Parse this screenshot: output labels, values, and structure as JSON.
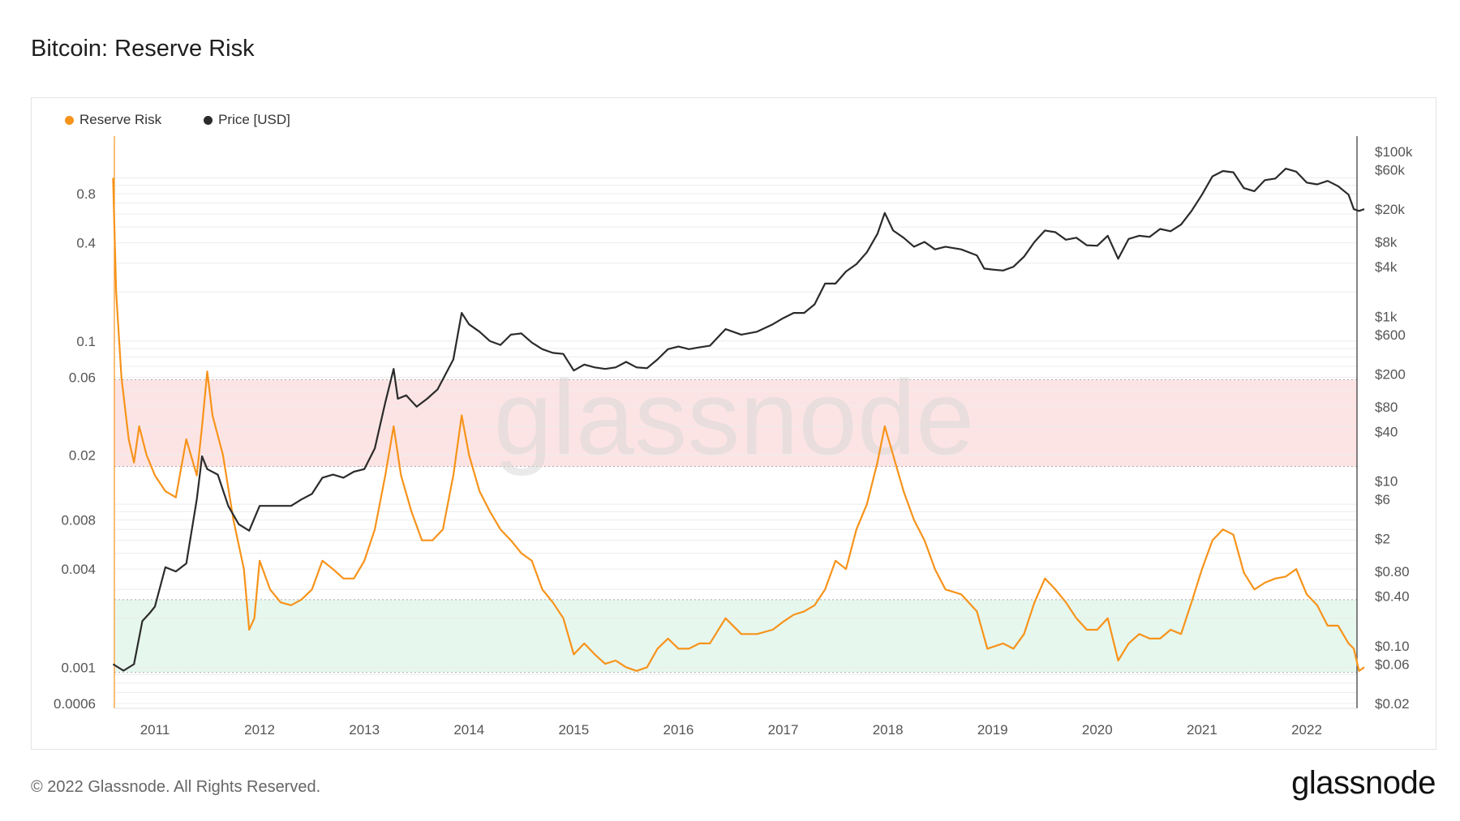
{
  "title": "Bitcoin: Reserve Risk",
  "footer": "© 2022 Glassnode. All Rights Reserved.",
  "logo": "glassnode",
  "watermark": "glassnode",
  "colors": {
    "reserve_risk": "#f7931a",
    "price": "#2b2b2b",
    "red_band": "#fde4e4",
    "green_band": "#e6f7ee"
  },
  "chart_data": {
    "type": "line",
    "x_ticks": [
      "2011",
      "2012",
      "2013",
      "2014",
      "2015",
      "2016",
      "2017",
      "2018",
      "2019",
      "2020",
      "2021",
      "2022"
    ],
    "xlim": [
      2010.6,
      2022.55
    ],
    "left_axis": {
      "scale": "log",
      "ylim": [
        0.0006,
        1.25
      ],
      "ticks": [
        0.8,
        0.4,
        0.1,
        0.06,
        0.02,
        0.008,
        0.004,
        0.001,
        0.0006
      ],
      "tick_labels": [
        "0.8",
        "0.4",
        "0.1",
        "0.06",
        "0.02",
        "0.008",
        "0.004",
        "0.001",
        "0.0006"
      ]
    },
    "right_axis": {
      "scale": "log",
      "ylim": [
        0.02,
        100000
      ],
      "ticks": [
        100000,
        60000,
        20000,
        8000,
        4000,
        1000,
        600,
        200,
        80,
        40,
        10,
        6,
        2,
        0.8,
        0.4,
        0.1,
        0.06,
        0.02
      ],
      "tick_labels": [
        "$100k",
        "$60k",
        "$20k",
        "$8k",
        "$4k",
        "$1k",
        "$600",
        "$200",
        "$80",
        "$40",
        "$10",
        "$6",
        "$2",
        "$0.80",
        "$0.40",
        "$0.10",
        "$0.06",
        "$0.02"
      ]
    },
    "bands": [
      {
        "axis": "left",
        "from": 0.017,
        "to": 0.058,
        "color": "#fde4e4"
      },
      {
        "axis": "left",
        "from": 0.00093,
        "to": 0.0026,
        "color": "#e6f7ee"
      }
    ],
    "series": [
      {
        "name": "Reserve Risk",
        "axis": "left",
        "color": "#f7931a",
        "points": [
          [
            2010.6,
            1.0
          ],
          [
            2010.63,
            0.2
          ],
          [
            2010.68,
            0.06
          ],
          [
            2010.75,
            0.025
          ],
          [
            2010.8,
            0.018
          ],
          [
            2010.85,
            0.03
          ],
          [
            2010.92,
            0.02
          ],
          [
            2011.0,
            0.015
          ],
          [
            2011.1,
            0.012
          ],
          [
            2011.2,
            0.011
          ],
          [
            2011.3,
            0.025
          ],
          [
            2011.4,
            0.015
          ],
          [
            2011.45,
            0.03
          ],
          [
            2011.5,
            0.065
          ],
          [
            2011.55,
            0.035
          ],
          [
            2011.65,
            0.02
          ],
          [
            2011.75,
            0.008
          ],
          [
            2011.85,
            0.004
          ],
          [
            2011.9,
            0.0017
          ],
          [
            2011.95,
            0.002
          ],
          [
            2012.0,
            0.0045
          ],
          [
            2012.1,
            0.003
          ],
          [
            2012.2,
            0.0025
          ],
          [
            2012.3,
            0.0024
          ],
          [
            2012.4,
            0.0026
          ],
          [
            2012.5,
            0.003
          ],
          [
            2012.6,
            0.0045
          ],
          [
            2012.7,
            0.004
          ],
          [
            2012.8,
            0.0035
          ],
          [
            2012.9,
            0.0035
          ],
          [
            2013.0,
            0.0045
          ],
          [
            2013.1,
            0.007
          ],
          [
            2013.2,
            0.015
          ],
          [
            2013.28,
            0.03
          ],
          [
            2013.35,
            0.015
          ],
          [
            2013.45,
            0.009
          ],
          [
            2013.55,
            0.006
          ],
          [
            2013.65,
            0.006
          ],
          [
            2013.75,
            0.007
          ],
          [
            2013.85,
            0.015
          ],
          [
            2013.93,
            0.035
          ],
          [
            2014.0,
            0.02
          ],
          [
            2014.1,
            0.012
          ],
          [
            2014.2,
            0.009
          ],
          [
            2014.3,
            0.007
          ],
          [
            2014.4,
            0.006
          ],
          [
            2014.5,
            0.005
          ],
          [
            2014.6,
            0.0045
          ],
          [
            2014.7,
            0.003
          ],
          [
            2014.8,
            0.0025
          ],
          [
            2014.9,
            0.002
          ],
          [
            2015.0,
            0.0012
          ],
          [
            2015.1,
            0.0014
          ],
          [
            2015.2,
            0.0012
          ],
          [
            2015.3,
            0.00105
          ],
          [
            2015.4,
            0.0011
          ],
          [
            2015.5,
            0.001
          ],
          [
            2015.6,
            0.00095
          ],
          [
            2015.7,
            0.001
          ],
          [
            2015.8,
            0.0013
          ],
          [
            2015.9,
            0.0015
          ],
          [
            2016.0,
            0.0013
          ],
          [
            2016.1,
            0.0013
          ],
          [
            2016.2,
            0.0014
          ],
          [
            2016.3,
            0.0014
          ],
          [
            2016.45,
            0.002
          ],
          [
            2016.6,
            0.0016
          ],
          [
            2016.75,
            0.0016
          ],
          [
            2016.9,
            0.0017
          ],
          [
            2017.0,
            0.0019
          ],
          [
            2017.1,
            0.0021
          ],
          [
            2017.2,
            0.0022
          ],
          [
            2017.3,
            0.0024
          ],
          [
            2017.4,
            0.003
          ],
          [
            2017.5,
            0.0045
          ],
          [
            2017.6,
            0.004
          ],
          [
            2017.7,
            0.007
          ],
          [
            2017.8,
            0.01
          ],
          [
            2017.9,
            0.018
          ],
          [
            2017.97,
            0.03
          ],
          [
            2018.05,
            0.02
          ],
          [
            2018.15,
            0.012
          ],
          [
            2018.25,
            0.008
          ],
          [
            2018.35,
            0.006
          ],
          [
            2018.45,
            0.004
          ],
          [
            2018.55,
            0.003
          ],
          [
            2018.7,
            0.0028
          ],
          [
            2018.85,
            0.0022
          ],
          [
            2018.95,
            0.0013
          ],
          [
            2019.1,
            0.0014
          ],
          [
            2019.2,
            0.0013
          ],
          [
            2019.3,
            0.0016
          ],
          [
            2019.4,
            0.0025
          ],
          [
            2019.5,
            0.0035
          ],
          [
            2019.6,
            0.003
          ],
          [
            2019.7,
            0.0025
          ],
          [
            2019.8,
            0.002
          ],
          [
            2019.9,
            0.0017
          ],
          [
            2020.0,
            0.0017
          ],
          [
            2020.1,
            0.002
          ],
          [
            2020.2,
            0.0011
          ],
          [
            2020.3,
            0.0014
          ],
          [
            2020.4,
            0.0016
          ],
          [
            2020.5,
            0.0015
          ],
          [
            2020.6,
            0.0015
          ],
          [
            2020.7,
            0.0017
          ],
          [
            2020.8,
            0.0016
          ],
          [
            2020.9,
            0.0025
          ],
          [
            2021.0,
            0.004
          ],
          [
            2021.1,
            0.006
          ],
          [
            2021.2,
            0.007
          ],
          [
            2021.3,
            0.0065
          ],
          [
            2021.4,
            0.0038
          ],
          [
            2021.5,
            0.003
          ],
          [
            2021.6,
            0.0033
          ],
          [
            2021.7,
            0.0035
          ],
          [
            2021.8,
            0.0036
          ],
          [
            2021.9,
            0.004
          ],
          [
            2022.0,
            0.0028
          ],
          [
            2022.1,
            0.0024
          ],
          [
            2022.2,
            0.0018
          ],
          [
            2022.3,
            0.0018
          ],
          [
            2022.4,
            0.0014
          ],
          [
            2022.45,
            0.0013
          ],
          [
            2022.5,
            0.00095
          ],
          [
            2022.55,
            0.001
          ]
        ]
      },
      {
        "name": "Price [USD]",
        "axis": "right",
        "color": "#2b2b2b",
        "points": [
          [
            2010.6,
            0.06
          ],
          [
            2010.7,
            0.05
          ],
          [
            2010.8,
            0.06
          ],
          [
            2010.88,
            0.2
          ],
          [
            2010.95,
            0.25
          ],
          [
            2011.0,
            0.3
          ],
          [
            2011.1,
            0.9
          ],
          [
            2011.2,
            0.8
          ],
          [
            2011.3,
            1.0
          ],
          [
            2011.4,
            6.0
          ],
          [
            2011.45,
            20
          ],
          [
            2011.5,
            14
          ],
          [
            2011.6,
            12
          ],
          [
            2011.7,
            5
          ],
          [
            2011.8,
            3
          ],
          [
            2011.9,
            2.5
          ],
          [
            2012.0,
            5
          ],
          [
            2012.1,
            5
          ],
          [
            2012.2,
            5
          ],
          [
            2012.3,
            5
          ],
          [
            2012.4,
            6
          ],
          [
            2012.5,
            7
          ],
          [
            2012.6,
            11
          ],
          [
            2012.7,
            12
          ],
          [
            2012.8,
            11
          ],
          [
            2012.9,
            13
          ],
          [
            2013.0,
            14
          ],
          [
            2013.1,
            25
          ],
          [
            2013.2,
            90
          ],
          [
            2013.28,
            230
          ],
          [
            2013.32,
            100
          ],
          [
            2013.4,
            110
          ],
          [
            2013.5,
            80
          ],
          [
            2013.6,
            100
          ],
          [
            2013.7,
            130
          ],
          [
            2013.85,
            300
          ],
          [
            2013.93,
            1100
          ],
          [
            2014.0,
            800
          ],
          [
            2014.1,
            650
          ],
          [
            2014.2,
            500
          ],
          [
            2014.3,
            450
          ],
          [
            2014.4,
            600
          ],
          [
            2014.5,
            620
          ],
          [
            2014.6,
            480
          ],
          [
            2014.7,
            400
          ],
          [
            2014.8,
            360
          ],
          [
            2014.9,
            350
          ],
          [
            2015.0,
            220
          ],
          [
            2015.1,
            260
          ],
          [
            2015.2,
            240
          ],
          [
            2015.3,
            230
          ],
          [
            2015.4,
            240
          ],
          [
            2015.5,
            280
          ],
          [
            2015.6,
            240
          ],
          [
            2015.7,
            235
          ],
          [
            2015.8,
            300
          ],
          [
            2015.9,
            400
          ],
          [
            2016.0,
            430
          ],
          [
            2016.1,
            400
          ],
          [
            2016.2,
            420
          ],
          [
            2016.3,
            440
          ],
          [
            2016.45,
            700
          ],
          [
            2016.6,
            600
          ],
          [
            2016.75,
            650
          ],
          [
            2016.9,
            800
          ],
          [
            2017.0,
            950
          ],
          [
            2017.1,
            1100
          ],
          [
            2017.2,
            1100
          ],
          [
            2017.3,
            1400
          ],
          [
            2017.4,
            2500
          ],
          [
            2017.5,
            2500
          ],
          [
            2017.6,
            3500
          ],
          [
            2017.7,
            4300
          ],
          [
            2017.8,
            6000
          ],
          [
            2017.9,
            10000
          ],
          [
            2017.97,
            18000
          ],
          [
            2018.05,
            11000
          ],
          [
            2018.15,
            9000
          ],
          [
            2018.25,
            7000
          ],
          [
            2018.35,
            8000
          ],
          [
            2018.45,
            6500
          ],
          [
            2018.55,
            7000
          ],
          [
            2018.7,
            6500
          ],
          [
            2018.85,
            5500
          ],
          [
            2018.92,
            3800
          ],
          [
            2019.0,
            3700
          ],
          [
            2019.1,
            3600
          ],
          [
            2019.2,
            4000
          ],
          [
            2019.3,
            5300
          ],
          [
            2019.4,
            8000
          ],
          [
            2019.5,
            11000
          ],
          [
            2019.6,
            10500
          ],
          [
            2019.7,
            8500
          ],
          [
            2019.8,
            9000
          ],
          [
            2019.9,
            7300
          ],
          [
            2020.0,
            7200
          ],
          [
            2020.1,
            9500
          ],
          [
            2020.2,
            5000
          ],
          [
            2020.3,
            8700
          ],
          [
            2020.4,
            9500
          ],
          [
            2020.5,
            9200
          ],
          [
            2020.6,
            11500
          ],
          [
            2020.7,
            10800
          ],
          [
            2020.8,
            13000
          ],
          [
            2020.9,
            19000
          ],
          [
            2021.0,
            30000
          ],
          [
            2021.1,
            50000
          ],
          [
            2021.2,
            58000
          ],
          [
            2021.3,
            56000
          ],
          [
            2021.4,
            36000
          ],
          [
            2021.5,
            33000
          ],
          [
            2021.6,
            45000
          ],
          [
            2021.7,
            47000
          ],
          [
            2021.8,
            62000
          ],
          [
            2021.9,
            57000
          ],
          [
            2022.0,
            42000
          ],
          [
            2022.1,
            40000
          ],
          [
            2022.2,
            44000
          ],
          [
            2022.3,
            38000
          ],
          [
            2022.4,
            30000
          ],
          [
            2022.45,
            20000
          ],
          [
            2022.5,
            19000
          ],
          [
            2022.55,
            20000
          ]
        ]
      }
    ]
  }
}
